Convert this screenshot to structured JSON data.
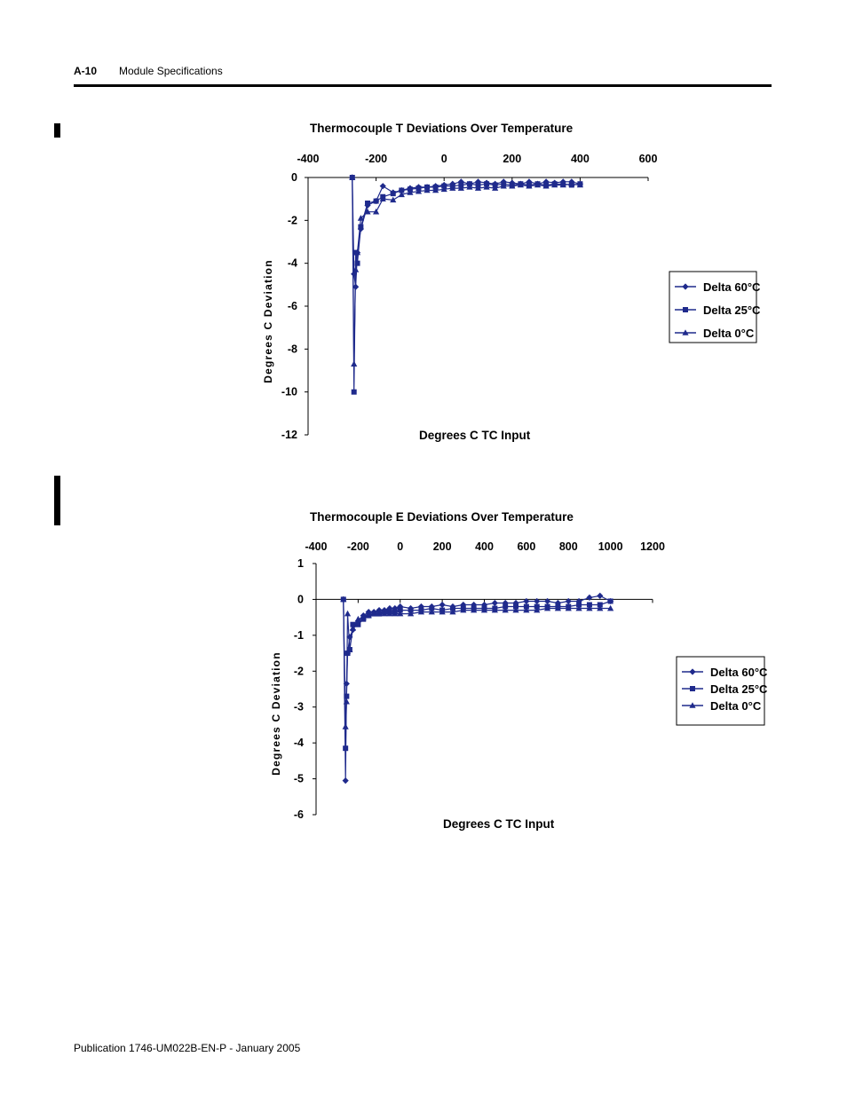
{
  "header": {
    "page_number": "A-10",
    "section": "Module Specifications"
  },
  "footer": {
    "publication": "Publication 1746-UM022B-EN-P - January 2005"
  },
  "colors": {
    "series": "#1f2a8c",
    "axis": "#000000",
    "legend_border": "#000000"
  },
  "chart_data": [
    {
      "type": "line",
      "title": "Thermocouple T Deviations Over Temperature",
      "xlabel": "Degrees C TC Input",
      "ylabel": "Degrees C Deviation",
      "xlim": [
        -400,
        600
      ],
      "ylim": [
        -12,
        0
      ],
      "x_axis_position": "top",
      "xticks": [
        "-400",
        "-200",
        "0",
        "200",
        "400",
        "600"
      ],
      "yticks": [
        "0",
        "-2",
        "-4",
        "-6",
        "-8",
        "-10",
        "-12"
      ],
      "legend_position": "right",
      "grid": false,
      "series": [
        {
          "name": "Delta 60°C",
          "marker": "diamond",
          "x": [
            -270,
            -265,
            -260,
            -255,
            -245,
            -225,
            -200,
            -180,
            -150,
            -125,
            -100,
            -75,
            -50,
            -25,
            0,
            25,
            50,
            75,
            100,
            125,
            150,
            175,
            200,
            225,
            250,
            275,
            300,
            325,
            350,
            375,
            400
          ],
          "y": [
            0,
            -4.5,
            -5.1,
            -3.5,
            -2.4,
            -1.3,
            -1.1,
            -0.4,
            -0.7,
            -0.6,
            -0.5,
            -0.45,
            -0.45,
            -0.4,
            -0.35,
            -0.3,
            -0.2,
            -0.3,
            -0.2,
            -0.25,
            -0.3,
            -0.2,
            -0.25,
            -0.3,
            -0.2,
            -0.3,
            -0.2,
            -0.25,
            -0.2,
            -0.2,
            -0.3
          ]
        },
        {
          "name": "Delta 25°C",
          "marker": "square",
          "x": [
            -270,
            -265,
            -260,
            -255,
            -245,
            -225,
            -200,
            -180,
            -150,
            -125,
            -100,
            -75,
            -50,
            -25,
            0,
            25,
            50,
            75,
            100,
            125,
            150,
            175,
            200,
            225,
            250,
            275,
            300,
            325,
            350,
            375,
            400
          ],
          "y": [
            0,
            -10,
            -3.5,
            -4,
            -2.3,
            -1.2,
            -1.1,
            -0.9,
            -0.75,
            -0.6,
            -0.55,
            -0.5,
            -0.45,
            -0.45,
            -0.4,
            -0.4,
            -0.35,
            -0.3,
            -0.35,
            -0.3,
            -0.35,
            -0.3,
            -0.35,
            -0.3,
            -0.35,
            -0.3,
            -0.35,
            -0.3,
            -0.3,
            -0.35,
            -0.3
          ]
        },
        {
          "name": "Delta 0°C",
          "marker": "triangle",
          "x": [
            -270,
            -265,
            -260,
            -255,
            -245,
            -225,
            -200,
            -180,
            -150,
            -125,
            -100,
            -75,
            -50,
            -25,
            0,
            25,
            50,
            75,
            100,
            125,
            150,
            175,
            200,
            225,
            250,
            275,
            300,
            325,
            350,
            375,
            400
          ],
          "y": [
            0,
            -8.7,
            -4.3,
            -3.5,
            -1.9,
            -1.6,
            -1.6,
            -1.0,
            -1.05,
            -0.8,
            -0.7,
            -0.65,
            -0.6,
            -0.6,
            -0.55,
            -0.5,
            -0.5,
            -0.45,
            -0.5,
            -0.45,
            -0.5,
            -0.4,
            -0.4,
            -0.35,
            -0.4,
            -0.35,
            -0.4,
            -0.35,
            -0.35,
            -0.3,
            -0.35
          ]
        }
      ]
    },
    {
      "type": "line",
      "title": "Thermocouple E Deviations Over Temperature",
      "xlabel": "Degrees C TC Input",
      "ylabel": "Degrees C Deviation",
      "xlim": [
        -400,
        1200
      ],
      "ylim": [
        -6,
        1
      ],
      "x_axis_position": "top",
      "xticks": [
        "-400",
        "-200",
        "0",
        "200",
        "400",
        "600",
        "800",
        "1000",
        "1200"
      ],
      "yticks": [
        "1",
        "0",
        "-1",
        "-2",
        "-3",
        "-4",
        "-5",
        "-6"
      ],
      "legend_position": "right",
      "grid": false,
      "series": [
        {
          "name": "Delta 60°C",
          "marker": "diamond",
          "x": [
            -270,
            -260,
            -255,
            -250,
            -240,
            -225,
            -200,
            -175,
            -150,
            -125,
            -100,
            -75,
            -50,
            -25,
            0,
            50,
            100,
            150,
            200,
            250,
            300,
            350,
            400,
            450,
            500,
            550,
            600,
            650,
            700,
            750,
            800,
            850,
            900,
            950,
            1000
          ],
          "y": [
            0,
            -5.05,
            -2.35,
            -1.5,
            -1.05,
            -0.85,
            -0.6,
            -0.45,
            -0.35,
            -0.35,
            -0.3,
            -0.3,
            -0.25,
            -0.25,
            -0.2,
            -0.25,
            -0.2,
            -0.2,
            -0.15,
            -0.2,
            -0.15,
            -0.15,
            -0.15,
            -0.1,
            -0.1,
            -0.1,
            -0.05,
            -0.05,
            -0.05,
            -0.1,
            -0.05,
            -0.05,
            0.05,
            0.1,
            -0.05
          ]
        },
        {
          "name": "Delta 25°C",
          "marker": "square",
          "x": [
            -270,
            -260,
            -255,
            -250,
            -240,
            -225,
            -200,
            -175,
            -150,
            -125,
            -100,
            -75,
            -50,
            -25,
            0,
            50,
            100,
            150,
            200,
            250,
            300,
            350,
            400,
            450,
            500,
            550,
            600,
            650,
            700,
            750,
            800,
            850,
            900,
            950,
            1000
          ],
          "y": [
            0,
            -4.15,
            -2.7,
            -1.5,
            -1.4,
            -0.7,
            -0.7,
            -0.55,
            -0.45,
            -0.4,
            -0.4,
            -0.35,
            -0.35,
            -0.35,
            -0.3,
            -0.3,
            -0.3,
            -0.25,
            -0.3,
            -0.25,
            -0.25,
            -0.25,
            -0.25,
            -0.25,
            -0.2,
            -0.2,
            -0.2,
            -0.2,
            -0.2,
            -0.2,
            -0.2,
            -0.15,
            -0.15,
            -0.15,
            -0.05
          ]
        },
        {
          "name": "Delta 0°C",
          "marker": "triangle",
          "x": [
            -270,
            -260,
            -255,
            -250,
            -240,
            -225,
            -200,
            -175,
            -150,
            -125,
            -100,
            -75,
            -50,
            -25,
            0,
            50,
            100,
            150,
            200,
            250,
            300,
            350,
            400,
            450,
            500,
            550,
            600,
            650,
            700,
            750,
            800,
            850,
            900,
            950,
            1000
          ],
          "y": [
            0,
            -3.55,
            -2.85,
            -0.4,
            -1.4,
            -0.8,
            -0.55,
            -0.5,
            -0.45,
            -0.4,
            -0.4,
            -0.4,
            -0.4,
            -0.4,
            -0.4,
            -0.4,
            -0.35,
            -0.35,
            -0.35,
            -0.35,
            -0.3,
            -0.3,
            -0.3,
            -0.3,
            -0.3,
            -0.3,
            -0.3,
            -0.3,
            -0.25,
            -0.25,
            -0.25,
            -0.25,
            -0.25,
            -0.25,
            -0.25
          ]
        }
      ]
    }
  ]
}
